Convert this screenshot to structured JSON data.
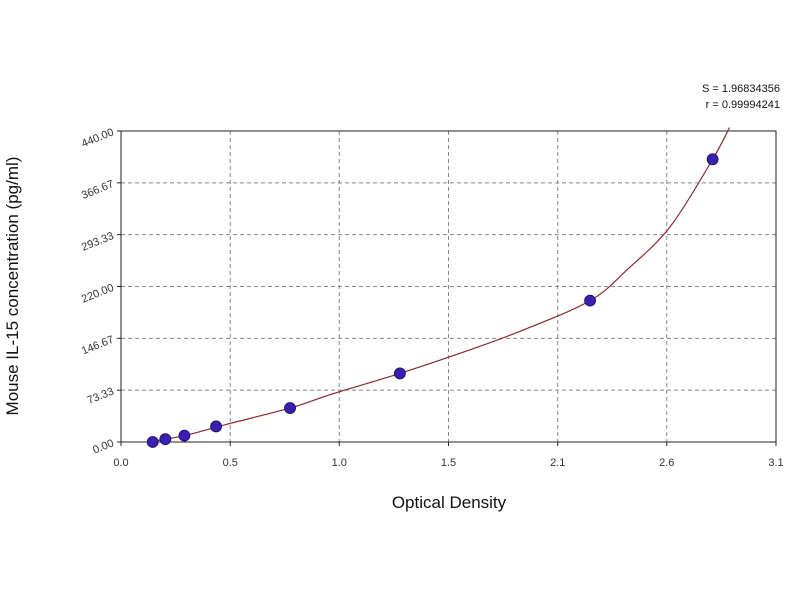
{
  "chart_data": {
    "type": "scatter",
    "title": "",
    "xlabel": "Optical Density",
    "ylabel": "Mouse IL-15 concentration (pg/ml)",
    "xlim": [
      0.0,
      3.1
    ],
    "ylim": [
      0.0,
      440.0
    ],
    "x_ticks": [
      "0.0",
      "0.5",
      "1.0",
      "1.5",
      "2.1",
      "2.6",
      "3.1"
    ],
    "x_tick_values": [
      0.0,
      0.517,
      1.033,
      1.55,
      2.067,
      2.583,
      3.1
    ],
    "y_ticks": [
      "0.00",
      "73.33",
      "146.67",
      "220.00",
      "293.33",
      "366.67",
      "440.00"
    ],
    "y_tick_values": [
      0,
      73.33,
      146.67,
      220,
      293.33,
      366.67,
      440
    ],
    "grid": true,
    "stats_lines": [
      "S = 1.96834356",
      "r = 0.99994241"
    ],
    "colors": {
      "points": "#3a1fb0",
      "curve": "#8b2a2a",
      "grid": "#888888"
    },
    "points": [
      {
        "x": 0.15,
        "y": 0.0
      },
      {
        "x": 0.21,
        "y": 4.0
      },
      {
        "x": 0.3,
        "y": 9.0
      },
      {
        "x": 0.45,
        "y": 22.0
      },
      {
        "x": 0.8,
        "y": 48.0
      },
      {
        "x": 1.32,
        "y": 97.0
      },
      {
        "x": 2.22,
        "y": 200.0
      },
      {
        "x": 2.8,
        "y": 400.0
      }
    ],
    "curve": [
      {
        "x": 0.13,
        "y": 0.0
      },
      {
        "x": 0.3,
        "y": 9.0
      },
      {
        "x": 0.5,
        "y": 25.0
      },
      {
        "x": 0.8,
        "y": 48.0
      },
      {
        "x": 1.0,
        "y": 68.0
      },
      {
        "x": 1.32,
        "y": 97.0
      },
      {
        "x": 1.6,
        "y": 125.0
      },
      {
        "x": 1.9,
        "y": 158.0
      },
      {
        "x": 2.22,
        "y": 200.0
      },
      {
        "x": 2.4,
        "y": 245.0
      },
      {
        "x": 2.6,
        "y": 305.0
      },
      {
        "x": 2.8,
        "y": 400.0
      },
      {
        "x": 2.88,
        "y": 445.0
      }
    ]
  }
}
